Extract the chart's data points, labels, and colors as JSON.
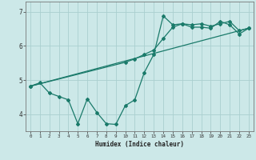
{
  "xlabel": "Humidex (Indice chaleur)",
  "bg_color": "#cce8e8",
  "line_color": "#1a7a6a",
  "grid_color": "#aacfcf",
  "xlim": [
    -0.5,
    23.5
  ],
  "ylim": [
    3.5,
    7.3
  ],
  "yticks": [
    4,
    5,
    6,
    7
  ],
  "xticks": [
    0,
    1,
    2,
    3,
    4,
    5,
    6,
    7,
    8,
    9,
    10,
    11,
    12,
    13,
    14,
    15,
    16,
    17,
    18,
    19,
    20,
    21,
    22,
    23
  ],
  "line1_x": [
    0,
    1,
    2,
    3,
    4,
    5,
    6,
    7,
    8,
    9,
    10,
    11,
    12,
    13,
    14,
    15,
    16,
    17,
    18,
    19,
    20,
    21,
    22,
    23
  ],
  "line1_y": [
    4.82,
    4.92,
    4.62,
    4.52,
    4.42,
    3.72,
    4.45,
    4.05,
    3.72,
    3.7,
    4.25,
    4.42,
    5.22,
    5.75,
    6.88,
    6.62,
    6.65,
    6.55,
    6.55,
    6.52,
    6.72,
    6.62,
    6.35,
    6.52
  ],
  "line2_x": [
    0,
    10,
    11,
    12,
    13,
    14,
    15,
    16,
    17,
    18,
    19,
    20,
    21,
    22,
    23
  ],
  "line2_y": [
    4.82,
    5.52,
    5.62,
    5.75,
    5.88,
    6.22,
    6.55,
    6.65,
    6.62,
    6.65,
    6.58,
    6.65,
    6.72,
    6.45,
    6.52
  ],
  "line3_x": [
    0,
    23
  ],
  "line3_y": [
    4.82,
    6.52
  ],
  "xlabel_fontsize": 5.5,
  "tick_fontsize_x": 4.2,
  "tick_fontsize_y": 5.5
}
